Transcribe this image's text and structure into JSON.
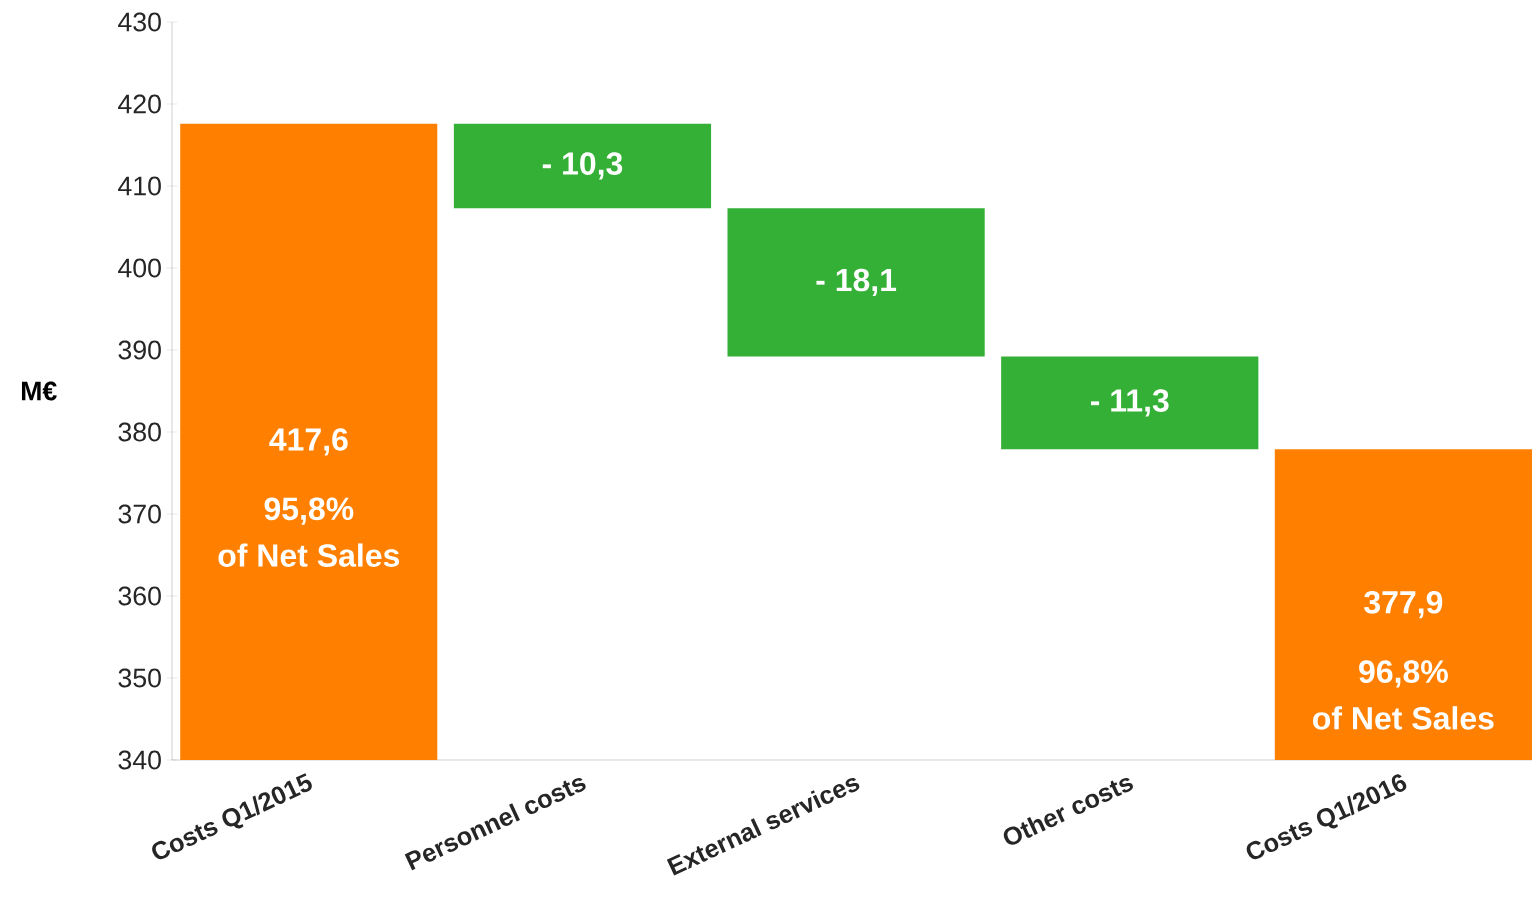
{
  "chart_data": {
    "type": "bar",
    "ylabel": "M€",
    "categories": [
      "Costs Q1/2015",
      "Personnel costs",
      "External services",
      "Other costs",
      "Costs Q1/2016"
    ],
    "values": [
      417.6,
      -10.3,
      -18.1,
      -11.3,
      377.9
    ],
    "base": [
      null,
      417.6,
      407.3,
      389.2,
      null
    ],
    "colors": [
      "#ff8000",
      "#33b035",
      "#33b035",
      "#33b035",
      "#ff8000"
    ],
    "value_labels": [
      "417,6",
      "- 10,3",
      "- 18,1",
      "- 11,3",
      "377,9"
    ],
    "annotations": [
      "95,8%",
      "of Net Sales",
      "96,8%",
      "of Net Sales"
    ],
    "ylim": [
      340,
      430
    ],
    "yticks": [
      340,
      350,
      360,
      370,
      380,
      390,
      400,
      410,
      420,
      430
    ]
  }
}
